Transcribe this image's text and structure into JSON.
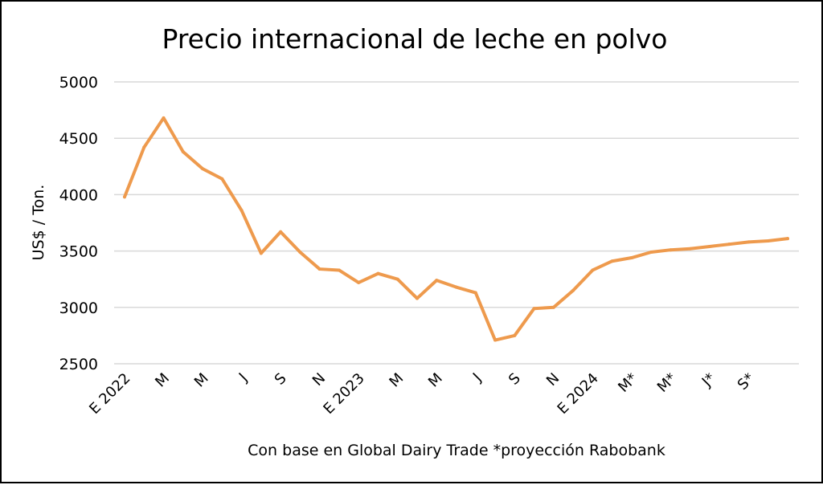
{
  "chart_data": {
    "type": "line",
    "title": "Precio internacional de leche en polvo",
    "ylabel": "US$ / Ton.",
    "xlabel": "Con base en Global Dairy Trade *proyección Rabobank",
    "ylim": [
      2500,
      5000
    ],
    "yticks": [
      2500,
      3000,
      3500,
      4000,
      4500,
      5000
    ],
    "grid": true,
    "line_color": "#EE9A4D",
    "xtick_labels": [
      "E 2022",
      "M",
      "M",
      "J",
      "S",
      "N",
      "E 2023",
      "M",
      "M",
      "J",
      "S",
      "N",
      "E 2024",
      "M*",
      "M*",
      "J*",
      "S*"
    ],
    "xtick_step": 2,
    "series": [
      {
        "name": "Precio",
        "values": [
          3980,
          4420,
          4680,
          4380,
          4230,
          4140,
          3860,
          3480,
          3670,
          3490,
          3340,
          3330,
          3220,
          3300,
          3250,
          3080,
          3240,
          3180,
          3130,
          2710,
          2750,
          2990,
          3000,
          3150,
          3330,
          3410,
          3440,
          3490,
          3510,
          3520,
          3540,
          3560,
          3580,
          3590,
          3610
        ]
      }
    ]
  }
}
